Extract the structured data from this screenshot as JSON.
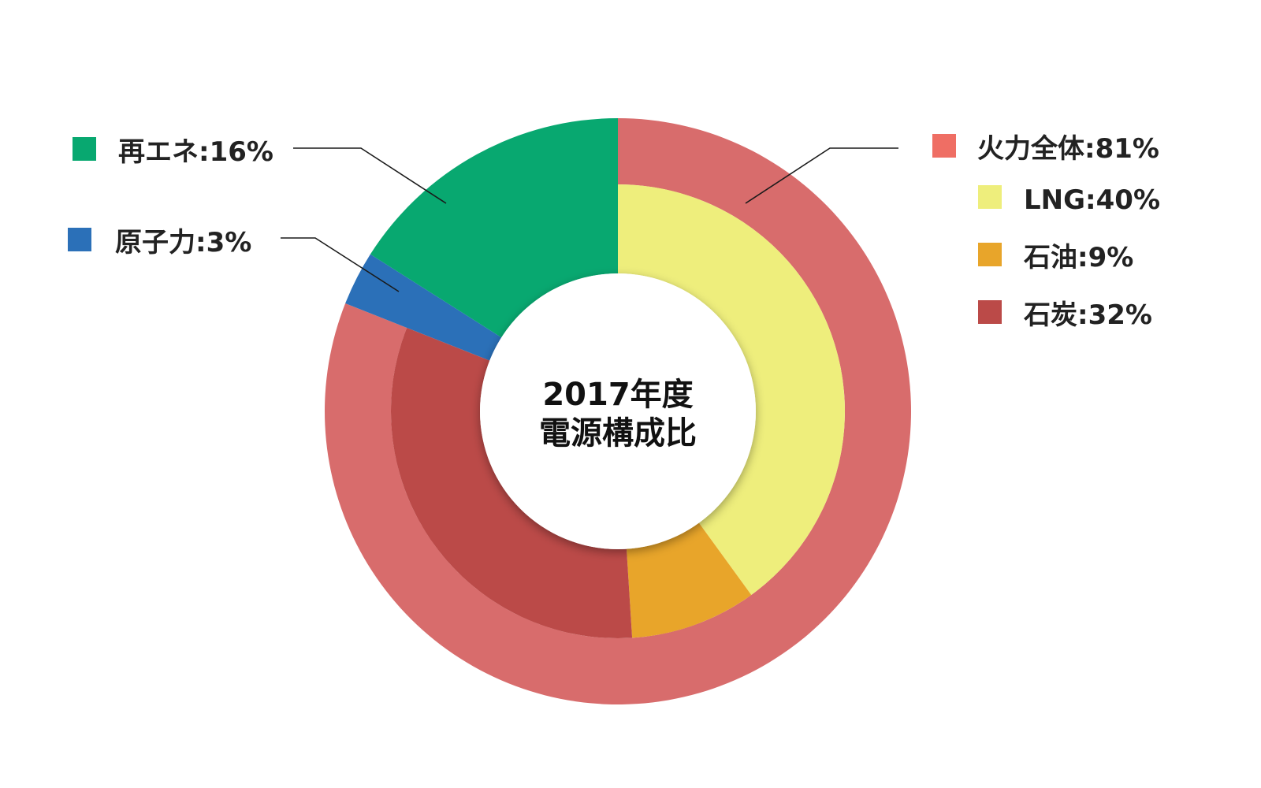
{
  "chart_data": {
    "type": "pie",
    "title": "",
    "center_label_lines": [
      "2017年度",
      "電源構成比"
    ],
    "outer_ring": [
      {
        "label": "再エネ:16%",
        "value": 16,
        "color": "#08a870"
      },
      {
        "label": "原子力:3%",
        "value": 3,
        "color": "#2b70b8"
      },
      {
        "label": "火力全体:81%",
        "value": 81,
        "color": "#d86c6c"
      }
    ],
    "inner_ring": [
      {
        "label": "LNG:40%",
        "value": 40,
        "color": "#eeee7c"
      },
      {
        "label": "石油:9%",
        "value": 9,
        "color": "#e8a52a"
      },
      {
        "label": "石炭:32%",
        "value": 32,
        "color": "#bb4a48"
      },
      {
        "label": "",
        "value": 19,
        "color": "transparent"
      }
    ],
    "legend_left": [
      {
        "label": "再エネ:16%",
        "color": "#08a870"
      },
      {
        "label": "原子力:3%",
        "color": "#2b70b8"
      }
    ],
    "legend_right": [
      {
        "label": "火力全体:81%",
        "color": "#ef6e64"
      },
      {
        "label": "LNG:40%",
        "color": "#eeee7c"
      },
      {
        "label": "石油:9%",
        "color": "#e8a52a"
      },
      {
        "label": "石炭:32%",
        "color": "#bb4a48"
      }
    ],
    "center_color": "#ffffff"
  }
}
